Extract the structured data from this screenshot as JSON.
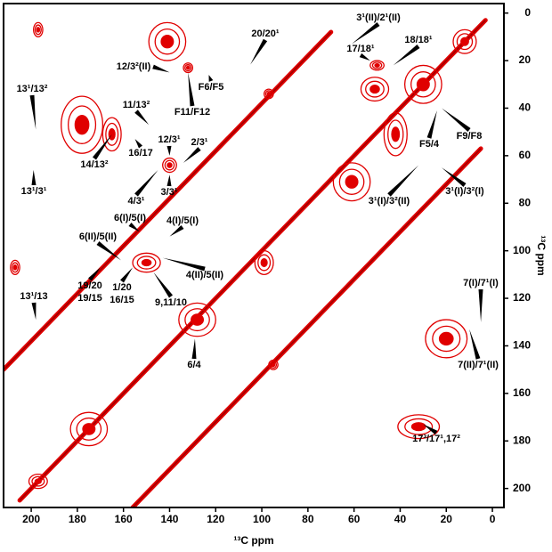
{
  "chart_data": {
    "type": "contour",
    "xlabel": "¹³C ppm",
    "ylabel": "¹³C ppm",
    "color": "#e00000",
    "xlim": [
      212,
      -5
    ],
    "ylim": [
      -4,
      208
    ],
    "xticks": [
      200,
      180,
      160,
      140,
      120,
      100,
      80,
      60,
      40,
      20,
      0
    ],
    "yticks": [
      0,
      20,
      40,
      60,
      80,
      100,
      120,
      140,
      160,
      180,
      200
    ],
    "ridges": [
      {
        "x1": 205,
        "y1": 205,
        "x2": 3,
        "y2": 3
      },
      {
        "x1": 212,
        "y1": 150,
        "x2": 70,
        "y2": 8
      },
      {
        "x1": 156,
        "y1": 208,
        "x2": 5,
        "y2": 57
      }
    ],
    "peaks": [
      {
        "x": 141,
        "y": 12,
        "w": 8,
        "h": 8
      },
      {
        "x": 178,
        "y": 47,
        "w": 9,
        "h": 12
      },
      {
        "x": 32,
        "y": 174,
        "w": 9,
        "h": 5
      },
      {
        "x": 20,
        "y": 137,
        "w": 9,
        "h": 8
      },
      {
        "x": 175,
        "y": 175,
        "w": 8,
        "h": 7
      },
      {
        "x": 97,
        "y": 34,
        "w": 2,
        "h": 2
      },
      {
        "x": 61,
        "y": 71,
        "w": 8,
        "h": 8
      },
      {
        "x": 99,
        "y": 105,
        "w": 4,
        "h": 5
      },
      {
        "x": 42,
        "y": 51,
        "w": 5,
        "h": 9
      },
      {
        "x": 51,
        "y": 32,
        "w": 6,
        "h": 5
      },
      {
        "x": 95,
        "y": 148,
        "w": 2,
        "h": 2
      },
      {
        "x": 197,
        "y": 197,
        "w": 4,
        "h": 3
      },
      {
        "x": 132,
        "y": 23,
        "w": 2,
        "h": 2
      },
      {
        "x": 140,
        "y": 64,
        "w": 3,
        "h": 3
      },
      {
        "x": 197,
        "y": 7,
        "w": 2,
        "h": 3
      },
      {
        "x": 207,
        "y": 107,
        "w": 2,
        "h": 3
      },
      {
        "x": 128,
        "y": 129,
        "w": 8,
        "h": 7
      },
      {
        "x": 150,
        "y": 105,
        "w": 6,
        "h": 4
      },
      {
        "x": 30,
        "y": 30,
        "w": 8,
        "h": 8
      },
      {
        "x": 12,
        "y": 12,
        "w": 5,
        "h": 5
      },
      {
        "x": 165,
        "y": 51,
        "w": 4,
        "h": 7
      },
      {
        "x": 50,
        "y": 22,
        "w": 3,
        "h": 2
      }
    ],
    "annotations": [
      {
        "lines": [
          "20/20¹"
        ],
        "x": 105,
        "y": 21.7
      },
      {
        "lines": [
          "3¹(II)/2¹(II)"
        ],
        "x": 61,
        "y": 13
      },
      {
        "lines": [
          "17/18¹"
        ],
        "x": 53,
        "y": 20
      },
      {
        "lines": [
          "18/18¹"
        ],
        "x": 43,
        "y": 22
      },
      {
        "lines": [
          "12/3²(II)"
        ],
        "x": 140,
        "y": 25
      },
      {
        "lines": [
          "F6/F5"
        ],
        "x": 123,
        "y": 26
      },
      {
        "lines": [
          "F11/F12"
        ],
        "x": 132,
        "y": 25
      },
      {
        "lines": [
          "11/13²"
        ],
        "x": 149,
        "y": 47
      },
      {
        "lines": [
          "13¹/13²"
        ],
        "x": 198,
        "y": 49
      },
      {
        "lines": [
          "14/13²"
        ],
        "x": 165,
        "y": 51
      },
      {
        "lines": [
          "16/17"
        ],
        "x": 155,
        "y": 53
      },
      {
        "lines": [
          "F5/4"
        ],
        "x": 24,
        "y": 41
      },
      {
        "lines": [
          "F9/F8"
        ],
        "x": 22,
        "y": 40
      },
      {
        "lines": [
          "12/3¹"
        ],
        "x": 140,
        "y": 60
      },
      {
        "lines": [
          "2/3¹"
        ],
        "x": 134,
        "y": 63
      },
      {
        "lines": [
          "13¹/3¹"
        ],
        "x": 199,
        "y": 66
      },
      {
        "lines": [
          "4/3¹"
        ],
        "x": 145,
        "y": 66
      },
      {
        "lines": [
          "3/3¹"
        ],
        "x": 140,
        "y": 68
      },
      {
        "lines": [
          "3¹(I)/3²(II)"
        ],
        "x": 32,
        "y": 64
      },
      {
        "lines": [
          "3¹(I)/3²(I)"
        ],
        "x": 22,
        "y": 65
      },
      {
        "lines": [
          "6(I)/5(I)"
        ],
        "x": 153,
        "y": 92
      },
      {
        "lines": [
          "4(I)/5(I)"
        ],
        "x": 140,
        "y": 94
      },
      {
        "lines": [
          "6(II)/5(II)"
        ],
        "x": 161,
        "y": 104
      },
      {
        "lines": [
          "4(II)/5(II)"
        ],
        "x": 143,
        "y": 103
      },
      {
        "lines": [
          "1/20",
          "16/15"
        ],
        "x": 156,
        "y": 107
      },
      {
        "lines": [
          "9,11/10"
        ],
        "x": 147,
        "y": 109
      },
      {
        "lines": [
          "19/20",
          "19/15"
        ],
        "x": 170,
        "y": 107
      },
      {
        "lines": [
          "13¹/13"
        ],
        "x": 198,
        "y": 129
      },
      {
        "lines": [
          "6/4"
        ],
        "x": 129,
        "y": 137
      },
      {
        "lines": [
          "7(I)/7¹(I)"
        ],
        "x": 5,
        "y": 130
      },
      {
        "lines": [
          "7(II)/7¹(II)"
        ],
        "x": 10,
        "y": 133
      },
      {
        "lines": [
          "17³/17¹,17²"
        ],
        "x": 30,
        "y": 173
      }
    ]
  }
}
